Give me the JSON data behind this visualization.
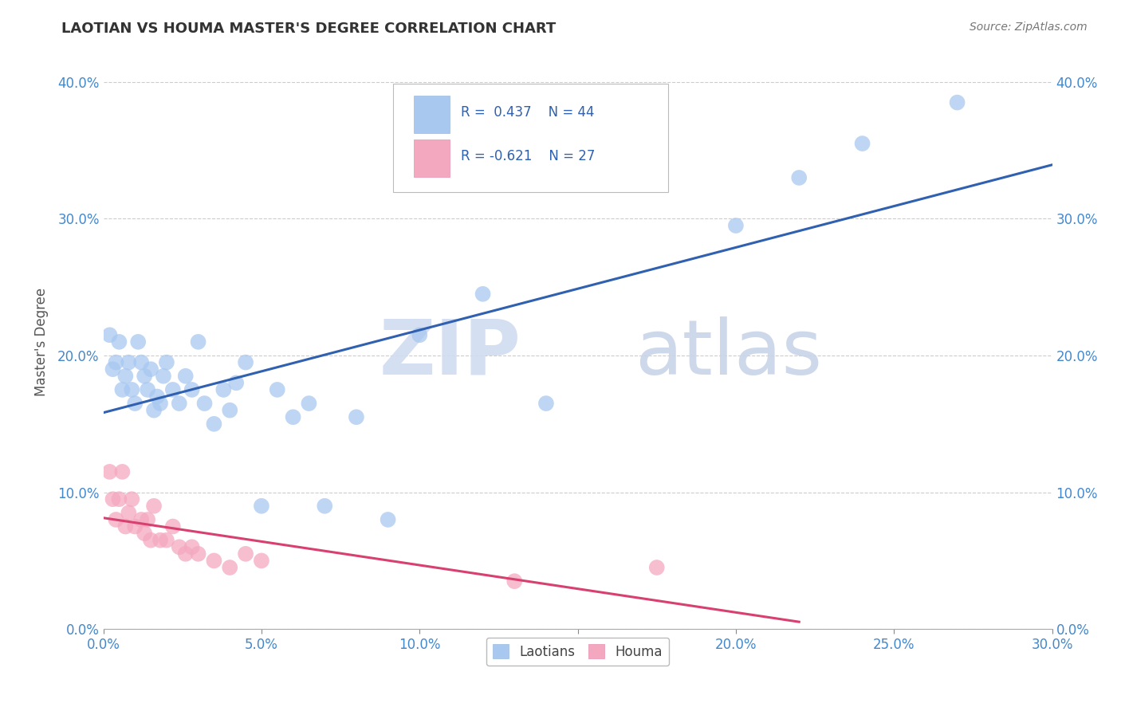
{
  "title": "LAOTIAN VS HOUMA MASTER'S DEGREE CORRELATION CHART",
  "source": "Source: ZipAtlas.com",
  "xlim": [
    0.0,
    0.3
  ],
  "ylim": [
    0.0,
    0.42
  ],
  "blue_color": "#A8C8F0",
  "pink_color": "#F4A8C0",
  "blue_line_color": "#3060B0",
  "pink_line_color": "#D84070",
  "blue_R": 0.437,
  "blue_N": 44,
  "pink_R": -0.621,
  "pink_N": 27,
  "blue_scatter_x": [
    0.002,
    0.003,
    0.004,
    0.005,
    0.006,
    0.007,
    0.008,
    0.009,
    0.01,
    0.011,
    0.012,
    0.013,
    0.014,
    0.015,
    0.016,
    0.017,
    0.018,
    0.019,
    0.02,
    0.022,
    0.024,
    0.026,
    0.028,
    0.03,
    0.032,
    0.035,
    0.038,
    0.04,
    0.042,
    0.045,
    0.05,
    0.055,
    0.06,
    0.065,
    0.07,
    0.08,
    0.09,
    0.1,
    0.12,
    0.14,
    0.2,
    0.22,
    0.24,
    0.27
  ],
  "blue_scatter_y": [
    0.215,
    0.19,
    0.195,
    0.21,
    0.175,
    0.185,
    0.195,
    0.175,
    0.165,
    0.21,
    0.195,
    0.185,
    0.175,
    0.19,
    0.16,
    0.17,
    0.165,
    0.185,
    0.195,
    0.175,
    0.165,
    0.185,
    0.175,
    0.21,
    0.165,
    0.15,
    0.175,
    0.16,
    0.18,
    0.195,
    0.09,
    0.175,
    0.155,
    0.165,
    0.09,
    0.155,
    0.08,
    0.215,
    0.245,
    0.165,
    0.295,
    0.33,
    0.355,
    0.385
  ],
  "pink_scatter_x": [
    0.002,
    0.003,
    0.004,
    0.005,
    0.006,
    0.007,
    0.008,
    0.009,
    0.01,
    0.012,
    0.013,
    0.014,
    0.015,
    0.016,
    0.018,
    0.02,
    0.022,
    0.024,
    0.026,
    0.028,
    0.03,
    0.035,
    0.04,
    0.045,
    0.05,
    0.13,
    0.175
  ],
  "pink_scatter_y": [
    0.115,
    0.095,
    0.08,
    0.095,
    0.115,
    0.075,
    0.085,
    0.095,
    0.075,
    0.08,
    0.07,
    0.08,
    0.065,
    0.09,
    0.065,
    0.065,
    0.075,
    0.06,
    0.055,
    0.06,
    0.055,
    0.05,
    0.045,
    0.055,
    0.05,
    0.035,
    0.045
  ]
}
